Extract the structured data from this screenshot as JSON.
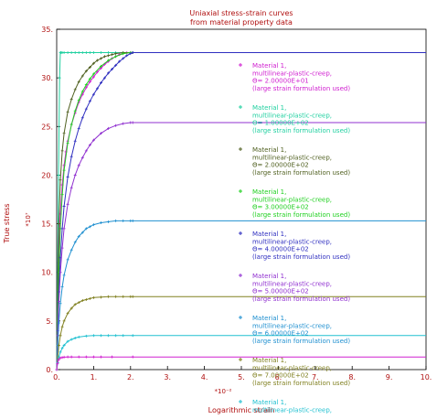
{
  "chart_data": {
    "type": "line",
    "title": [
      "Uniaxial stress-strain curves",
      "from material property data"
    ],
    "xlabel": "Logarithmic strain",
    "ylabel": "True stress",
    "x_multiplier": "*10⁻²",
    "y_multiplier": "*10⁷",
    "xlim": [
      0,
      10
    ],
    "ylim": [
      0,
      35
    ],
    "x_ticks": [
      "0.",
      "1.",
      "2.",
      "3.",
      "4.",
      "5.",
      "6.",
      "7.",
      "8.",
      "9.",
      "10."
    ],
    "y_ticks": [
      "0.",
      "5.",
      "10.",
      "15.",
      "20.",
      "25.",
      "30.",
      "35."
    ],
    "grid": false,
    "legend_position": "right",
    "series": [
      {
        "color": "#d020d0",
        "legend": [
          "Material 1,",
          "multilinear-plastic-creep,",
          "Θ= 2.00000E+01",
          "(large strain formulation used)"
        ],
        "x": [
          0,
          0.02,
          0.05,
          0.1,
          0.15,
          0.2,
          0.25,
          0.3,
          0.4,
          0.5,
          0.6,
          0.7,
          0.8,
          0.9,
          1.0,
          1.1,
          1.2,
          1.3,
          1.4,
          1.5,
          1.6,
          1.7,
          1.8,
          1.9,
          2.0,
          2.06,
          10
        ],
        "y": [
          0,
          5,
          11,
          16,
          19,
          21,
          22.4,
          23.5,
          25.2,
          26.4,
          27.5,
          28.3,
          29,
          29.6,
          30.1,
          30.6,
          31.0,
          31.4,
          31.7,
          32.0,
          32.2,
          32.4,
          32.5,
          32.6,
          32.6,
          32.6,
          32.6
        ]
      },
      {
        "color": "#20d0a0",
        "legend": [
          "Material 1,",
          "multilinear-plastic-creep,",
          "Θ= 1.00000E+02",
          "(large strain formulation used)"
        ],
        "x": [
          0,
          0.02,
          0.05,
          0.08,
          0.1,
          0.12,
          0.15,
          0.2,
          0.3,
          0.4,
          0.5,
          0.6,
          0.7,
          0.8,
          0.9,
          1.0,
          1.2,
          1.4,
          1.6,
          1.8,
          2.06,
          10
        ],
        "y": [
          0,
          8,
          20,
          30,
          32.6,
          32.6,
          32.6,
          32.6,
          32.6,
          32.6,
          32.6,
          32.6,
          32.6,
          32.6,
          32.6,
          32.6,
          32.6,
          32.6,
          32.6,
          32.6,
          32.6,
          32.6
        ]
      },
      {
        "color": "#506020",
        "legend": [
          "Material 1,",
          "multilinear-plastic-creep,",
          "Θ= 2.00000E+02",
          "(large strain formulation used)"
        ],
        "x": [
          0,
          0.03,
          0.06,
          0.1,
          0.15,
          0.2,
          0.3,
          0.4,
          0.5,
          0.6,
          0.7,
          0.8,
          0.9,
          1.0,
          1.1,
          1.2,
          1.3,
          1.4,
          1.5,
          1.6,
          1.8,
          2.0,
          2.06,
          10
        ],
        "y": [
          0,
          8,
          15,
          19.5,
          22.5,
          24.3,
          26.5,
          27.8,
          28.8,
          29.6,
          30.2,
          30.7,
          31.1,
          31.5,
          31.8,
          32.0,
          32.2,
          32.3,
          32.4,
          32.5,
          32.6,
          32.6,
          32.6,
          32.6
        ]
      },
      {
        "color": "#20d020",
        "legend": [
          "Material 1,",
          "multilinear-plastic-creep,",
          "Θ= 3.00000E+02",
          "(large strain formulation used)"
        ],
        "x": [
          0,
          0.03,
          0.06,
          0.1,
          0.15,
          0.2,
          0.3,
          0.4,
          0.5,
          0.6,
          0.7,
          0.8,
          0.9,
          1.0,
          1.2,
          1.4,
          1.6,
          1.8,
          2.0,
          2.06,
          10
        ],
        "y": [
          0,
          5,
          10,
          14.5,
          18,
          20.5,
          23.3,
          25.2,
          26.6,
          27.7,
          28.6,
          29.3,
          29.9,
          30.4,
          31.2,
          31.8,
          32.2,
          32.5,
          32.6,
          32.6,
          32.6
        ]
      },
      {
        "color": "#3030c0",
        "legend": [
          "Material 1,",
          "multilinear-plastic-creep,",
          "Θ= 4.00000E+02",
          "(large strain formulation used)"
        ],
        "x": [
          0,
          0.03,
          0.06,
          0.1,
          0.15,
          0.2,
          0.3,
          0.4,
          0.5,
          0.6,
          0.7,
          0.8,
          0.9,
          1.0,
          1.1,
          1.2,
          1.3,
          1.4,
          1.5,
          1.6,
          1.7,
          1.8,
          1.9,
          2.0,
          2.06,
          10
        ],
        "y": [
          0,
          4,
          8,
          11.5,
          14.5,
          16.8,
          19.8,
          21.9,
          23.5,
          24.8,
          25.9,
          26.8,
          27.6,
          28.3,
          28.9,
          29.5,
          30.0,
          30.5,
          30.9,
          31.3,
          31.7,
          32.0,
          32.3,
          32.5,
          32.6,
          32.6
        ]
      },
      {
        "color": "#9030d0",
        "legend": [
          "Material 1,",
          "multilinear-plastic-creep,",
          "Θ= 5.00000E+02",
          "(large strain formulation used)"
        ],
        "x": [
          0,
          0.03,
          0.06,
          0.1,
          0.15,
          0.2,
          0.3,
          0.4,
          0.5,
          0.6,
          0.7,
          0.8,
          0.9,
          1.0,
          1.2,
          1.4,
          1.6,
          1.8,
          2.0,
          2.06,
          10
        ],
        "y": [
          0,
          3.5,
          7,
          10,
          12.5,
          14.5,
          17,
          18.7,
          20,
          21,
          21.8,
          22.5,
          23.1,
          23.6,
          24.3,
          24.8,
          25.1,
          25.3,
          25.4,
          25.4,
          25.4
        ]
      },
      {
        "color": "#2090d0",
        "legend": [
          "Material 1,",
          "multilinear-plastic-creep,",
          "Θ= 6.00000E+02",
          "(large strain formulation used)"
        ],
        "x": [
          0,
          0.03,
          0.06,
          0.1,
          0.15,
          0.2,
          0.3,
          0.4,
          0.5,
          0.6,
          0.7,
          0.8,
          0.9,
          1.0,
          1.2,
          1.4,
          1.6,
          1.8,
          2.0,
          2.06,
          10
        ],
        "y": [
          0,
          2.5,
          4.8,
          6.8,
          8.5,
          9.7,
          11.3,
          12.3,
          13.1,
          13.7,
          14.1,
          14.5,
          14.7,
          14.9,
          15.1,
          15.2,
          15.3,
          15.3,
          15.3,
          15.3,
          15.3
        ]
      },
      {
        "color": "#808020",
        "legend": [
          "Material 1,",
          "multilinear-plastic-creep,",
          "Θ= 7.00000E+02",
          "(large strain formulation used)"
        ],
        "x": [
          0,
          0.03,
          0.06,
          0.1,
          0.15,
          0.2,
          0.3,
          0.4,
          0.5,
          0.6,
          0.7,
          0.8,
          0.9,
          1.0,
          1.2,
          1.4,
          1.6,
          1.8,
          2.0,
          2.06,
          10
        ],
        "y": [
          0,
          1.3,
          2.5,
          3.5,
          4.4,
          5.0,
          5.8,
          6.3,
          6.7,
          6.9,
          7.1,
          7.2,
          7.3,
          7.4,
          7.45,
          7.5,
          7.5,
          7.5,
          7.5,
          7.5,
          7.5
        ]
      },
      {
        "color": "#20c0d0",
        "legend": [
          "Material 1,",
          "multilinear-plastic-creep,"
        ],
        "x": [
          0,
          0.03,
          0.06,
          0.1,
          0.15,
          0.2,
          0.3,
          0.4,
          0.5,
          0.6,
          0.8,
          1.0,
          1.2,
          1.4,
          1.6,
          1.8,
          2.06,
          10
        ],
        "y": [
          0,
          0.7,
          1.3,
          1.8,
          2.2,
          2.5,
          2.9,
          3.1,
          3.25,
          3.35,
          3.45,
          3.5,
          3.5,
          3.5,
          3.5,
          3.5,
          3.5,
          3.5
        ]
      },
      {
        "color": "#d020d0",
        "legend": [],
        "x": [
          0,
          0.02,
          0.05,
          0.1,
          0.15,
          0.2,
          0.3,
          0.4,
          0.6,
          0.8,
          1.0,
          1.2,
          1.5,
          2.06,
          10
        ],
        "y": [
          0,
          0.6,
          1.0,
          1.2,
          1.25,
          1.28,
          1.3,
          1.3,
          1.3,
          1.3,
          1.3,
          1.3,
          1.3,
          1.3,
          1.3
        ]
      }
    ]
  }
}
